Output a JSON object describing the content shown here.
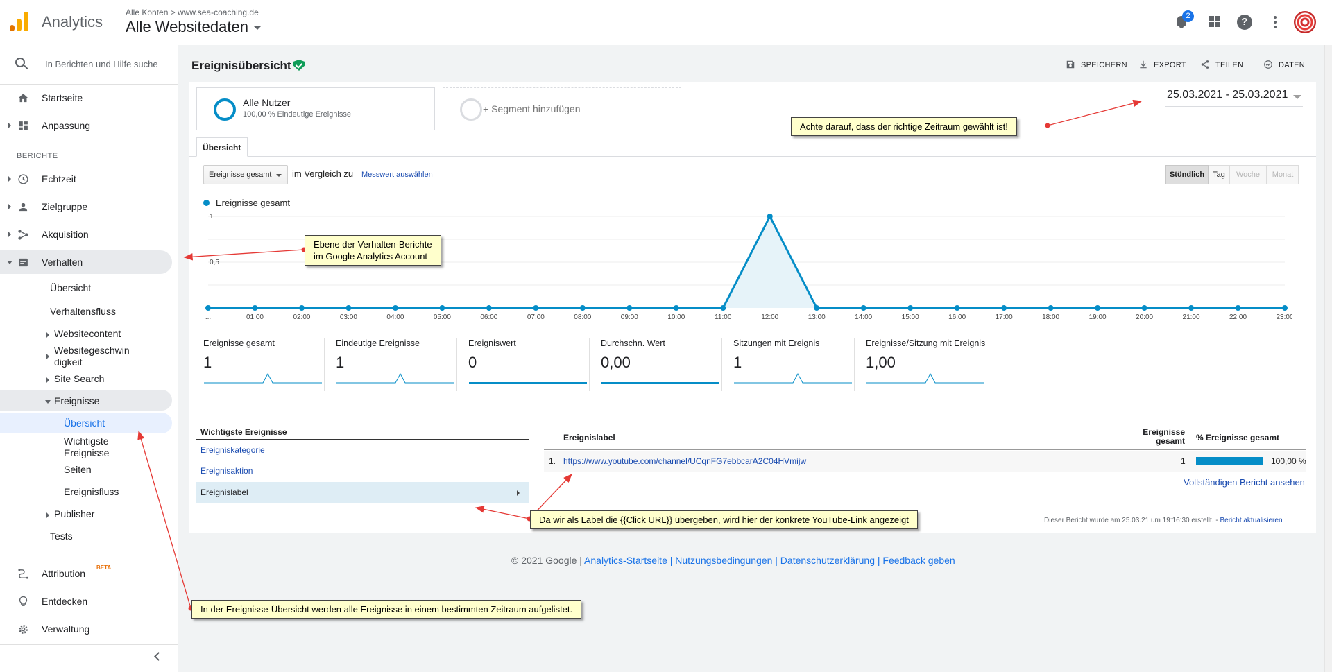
{
  "topbar": {
    "app_title": "Analytics",
    "breadcrumb": "Alle Konten > www.sea-coaching.de",
    "property": "Alle Websitedaten",
    "notification_count": "2"
  },
  "sidebar": {
    "search_placeholder": "In Berichten und Hilfe suche",
    "home": "Startseite",
    "customization": "Anpassung",
    "section_reports": "BERICHTE",
    "realtime": "Echtzeit",
    "audience": "Zielgruppe",
    "acquisition": "Akquisition",
    "behavior": "Verhalten",
    "behavior_sub": {
      "overview": "Übersicht",
      "flow": "Verhaltensfluss",
      "site_content": "Websitecontent",
      "site_speed_1": "Websitegeschwin",
      "site_speed_2": "digkeit",
      "site_search": "Site Search",
      "events": "Ereignisse",
      "events_overview": "Übersicht",
      "top_events_1": "Wichtigste",
      "top_events_2": "Ereignisse",
      "pages": "Seiten",
      "events_flow": "Ereignisfluss",
      "publisher": "Publisher",
      "tests": "Tests"
    },
    "attribution": "Attribution",
    "attribution_badge": "BETA",
    "discover": "Entdecken",
    "admin": "Verwaltung"
  },
  "header": {
    "title": "Ereignisübersicht",
    "save": "SPEICHERN",
    "export": "EXPORT",
    "share": "TEILEN",
    "insights": "DATEN"
  },
  "segments": {
    "all_users": "Alle Nutzer",
    "all_users_sub": "100,00 % Eindeutige Ereignisse",
    "add_segment": "+ Segment hinzufügen"
  },
  "date_range": "25.03.2021 - 25.03.2021",
  "tab": "Übersicht",
  "controls": {
    "metric_select": "Ereignisse gesamt",
    "compare": "im Vergleich zu",
    "choose_metric": "Messwert auswählen",
    "granularity": [
      "Stündlich",
      "Tag",
      "Woche",
      "Monat"
    ]
  },
  "chart_data": {
    "type": "line",
    "series": [
      {
        "name": "Ereignisse gesamt",
        "color": "#058dc7",
        "values": [
          0,
          0,
          0,
          0,
          0,
          0,
          0,
          0,
          0,
          0,
          0,
          0,
          1,
          0,
          0,
          0,
          0,
          0,
          0,
          0,
          0,
          0,
          0,
          0
        ]
      }
    ],
    "categories": [
      "...",
      "01:00",
      "02:00",
      "03:00",
      "04:00",
      "05:00",
      "06:00",
      "07:00",
      "08:00",
      "09:00",
      "10:00",
      "11:00",
      "12:00",
      "13:00",
      "14:00",
      "15:00",
      "16:00",
      "17:00",
      "18:00",
      "19:00",
      "20:00",
      "21:00",
      "22:00",
      "23:00"
    ],
    "yticks": [
      "1",
      "0,5"
    ],
    "ylim": [
      0,
      1
    ],
    "grid": true
  },
  "kpis": [
    {
      "name": "Ereignisse gesamt",
      "value": "1",
      "spark": "peak"
    },
    {
      "name": "Eindeutige Ereignisse",
      "value": "1",
      "spark": "peak"
    },
    {
      "name": "Ereigniswert",
      "value": "0",
      "spark": "flat"
    },
    {
      "name": "Durchschn. Wert",
      "value": "0,00",
      "spark": "flat"
    },
    {
      "name": "Sitzungen mit Ereignis",
      "value": "1",
      "spark": "peak"
    },
    {
      "name": "Ereignisse/Sitzung mit Ereignis",
      "value": "1,00",
      "spark": "peak"
    }
  ],
  "top_events": {
    "title": "Wichtigste Ereignisse",
    "category": "Ereigniskategorie",
    "action": "Ereignisaktion",
    "label": "Ereignislabel"
  },
  "table": {
    "col_label": "Ereignislabel",
    "col_total_1": "Ereignisse",
    "col_total_2": "gesamt",
    "col_pct": "% Ereignisse gesamt",
    "rows": [
      {
        "num": "1.",
        "label": "https://www.youtube.com/channel/UCqnFG7ebbcarA2C04HVmijw",
        "total": "1",
        "pct": "100,00 %",
        "share": 1.0
      }
    ],
    "full_report": "Vollständigen Bericht ansehen",
    "created": "Dieser Bericht wurde am 25.03.21 um 19:16:30 erstellt. - ",
    "refresh": "Bericht aktualisieren"
  },
  "footer": {
    "copyright": "© 2021 Google | ",
    "links": "Analytics-Startseite | Nutzungsbedingungen | Datenschutzerklärung | Feedback geben"
  },
  "annotations": {
    "date_note": "Achte darauf, dass der richtige Zeitraum gewählt ist!",
    "behavior_note_1": "Ebene der Verhalten-Berichte",
    "behavior_note_2": "im Google Analytics Account",
    "label_note": "Da wir als Label die {{Click URL}} übergeben, wird hier der konkrete YouTube-Link angezeigt",
    "overview_note": "In der Ereignisse-Übersicht werden alle Ereignisse in einem bestimmten Zeitraum aufgelistet."
  }
}
